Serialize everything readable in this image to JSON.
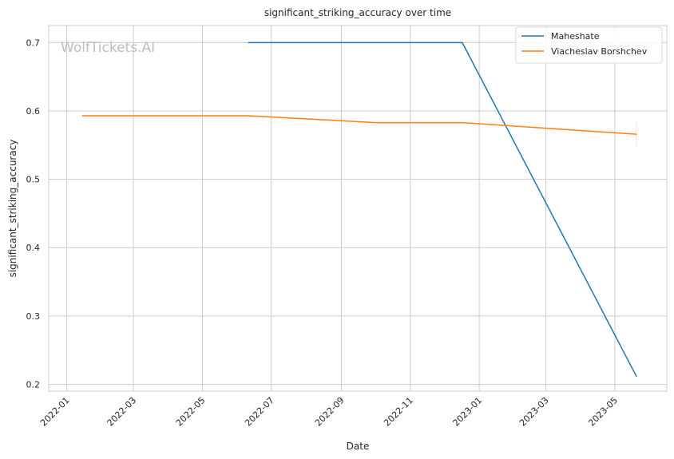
{
  "chart_data": {
    "type": "line",
    "title": "significant_striking_accuracy over time",
    "xlabel": "Date",
    "ylabel": "significant_striking_accuracy",
    "watermark": "WolfTickets.AI",
    "xlim": [
      "2021-12-16",
      "2023-06-16"
    ],
    "ylim": [
      0.19,
      0.725
    ],
    "x_ticks": [
      "2022-01",
      "2022-03",
      "2022-05",
      "2022-07",
      "2022-09",
      "2022-11",
      "2023-01",
      "2023-03",
      "2023-05"
    ],
    "y_ticks": [
      0.2,
      0.3,
      0.4,
      0.5,
      0.6,
      0.7
    ],
    "y_tick_labels": [
      "0.2",
      "0.3",
      "0.4",
      "0.5",
      "0.6",
      "0.7"
    ],
    "grid": true,
    "legend_position": "top-right",
    "series": [
      {
        "name": "Maheshate",
        "color": "#1f77b4",
        "x": [
          "2022-06-11",
          "2022-12-17",
          "2023-05-20"
        ],
        "y": [
          0.7,
          0.7,
          0.212
        ]
      },
      {
        "name": "Viacheslav Borshchev",
        "color": "#ff7f0e",
        "x": [
          "2022-01-15",
          "2022-06-11",
          "2022-10-01",
          "2022-12-17",
          "2023-05-20"
        ],
        "y": [
          0.593,
          0.593,
          0.583,
          0.583,
          0.566
        ],
        "error_band": {
          "x": "2023-05-20",
          "low": 0.548,
          "high": 0.584
        }
      }
    ]
  }
}
